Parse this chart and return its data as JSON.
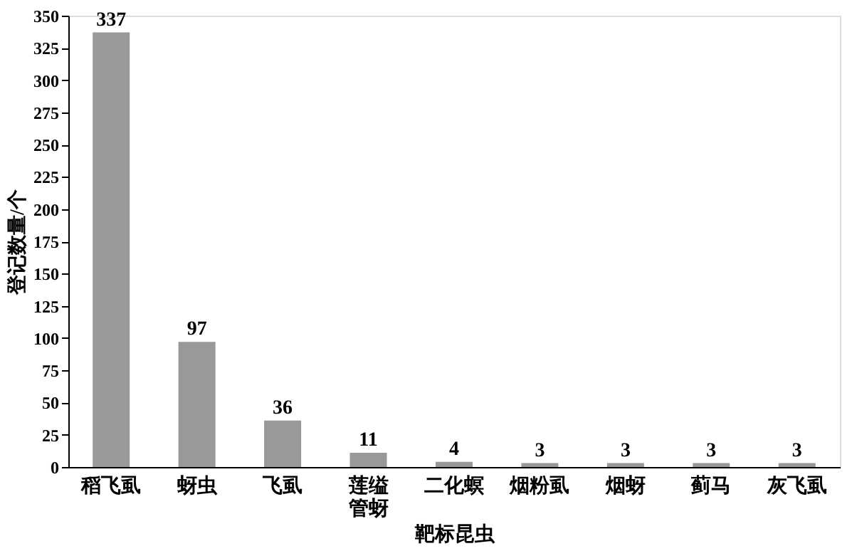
{
  "chart_data": {
    "type": "bar",
    "xlabel": "靶标昆虫",
    "ylabel": "登记数量/个",
    "categories": [
      "稻飞虱",
      "蚜虫",
      "飞虱",
      "莲缢管蚜",
      "二化螟",
      "烟粉虱",
      "烟蚜",
      "蓟马",
      "灰飞虱"
    ],
    "values": [
      337,
      97,
      36,
      11,
      4,
      3,
      3,
      3,
      3
    ],
    "color": "#999999",
    "ylim": [
      0,
      350
    ],
    "yticks": [
      0,
      25,
      50,
      75,
      100,
      125,
      150,
      175,
      200,
      225,
      250,
      275,
      300,
      325,
      350
    ],
    "grid": false,
    "data_labels": true
  }
}
